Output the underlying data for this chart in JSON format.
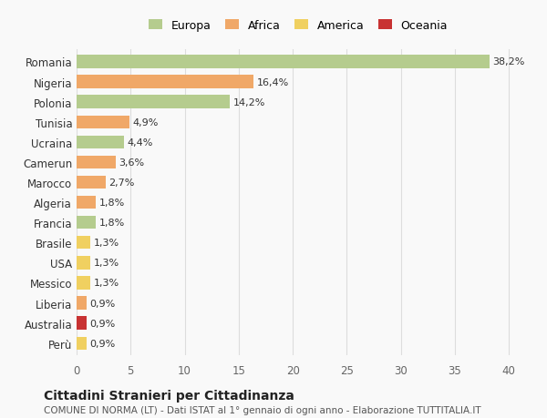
{
  "countries": [
    "Romania",
    "Nigeria",
    "Polonia",
    "Tunisia",
    "Ucraina",
    "Camerun",
    "Marocco",
    "Algeria",
    "Francia",
    "Brasile",
    "USA",
    "Messico",
    "Liberia",
    "Australia",
    "Perù"
  ],
  "values": [
    38.2,
    16.4,
    14.2,
    4.9,
    4.4,
    3.6,
    2.7,
    1.8,
    1.8,
    1.3,
    1.3,
    1.3,
    0.9,
    0.9,
    0.9
  ],
  "labels": [
    "38,2%",
    "16,4%",
    "14,2%",
    "4,9%",
    "4,4%",
    "3,6%",
    "2,7%",
    "1,8%",
    "1,8%",
    "1,3%",
    "1,3%",
    "1,3%",
    "0,9%",
    "0,9%",
    "0,9%"
  ],
  "colors": [
    "#b5cc8e",
    "#f0a868",
    "#b5cc8e",
    "#f0a868",
    "#b5cc8e",
    "#f0a868",
    "#f0a868",
    "#f0a868",
    "#b5cc8e",
    "#f0d060",
    "#f0d060",
    "#f0d060",
    "#f0a868",
    "#c83232",
    "#f0d060"
  ],
  "legend_labels": [
    "Europa",
    "Africa",
    "America",
    "Oceania"
  ],
  "legend_colors": [
    "#b5cc8e",
    "#f0a868",
    "#f0d060",
    "#c83232"
  ],
  "title": "Cittadini Stranieri per Cittadinanza",
  "subtitle": "COMUNE DI NORMA (LT) - Dati ISTAT al 1° gennaio di ogni anno - Elaborazione TUTTITALIA.IT",
  "xlim": [
    0,
    41
  ],
  "background_color": "#f9f9f9",
  "grid_color": "#dddddd"
}
